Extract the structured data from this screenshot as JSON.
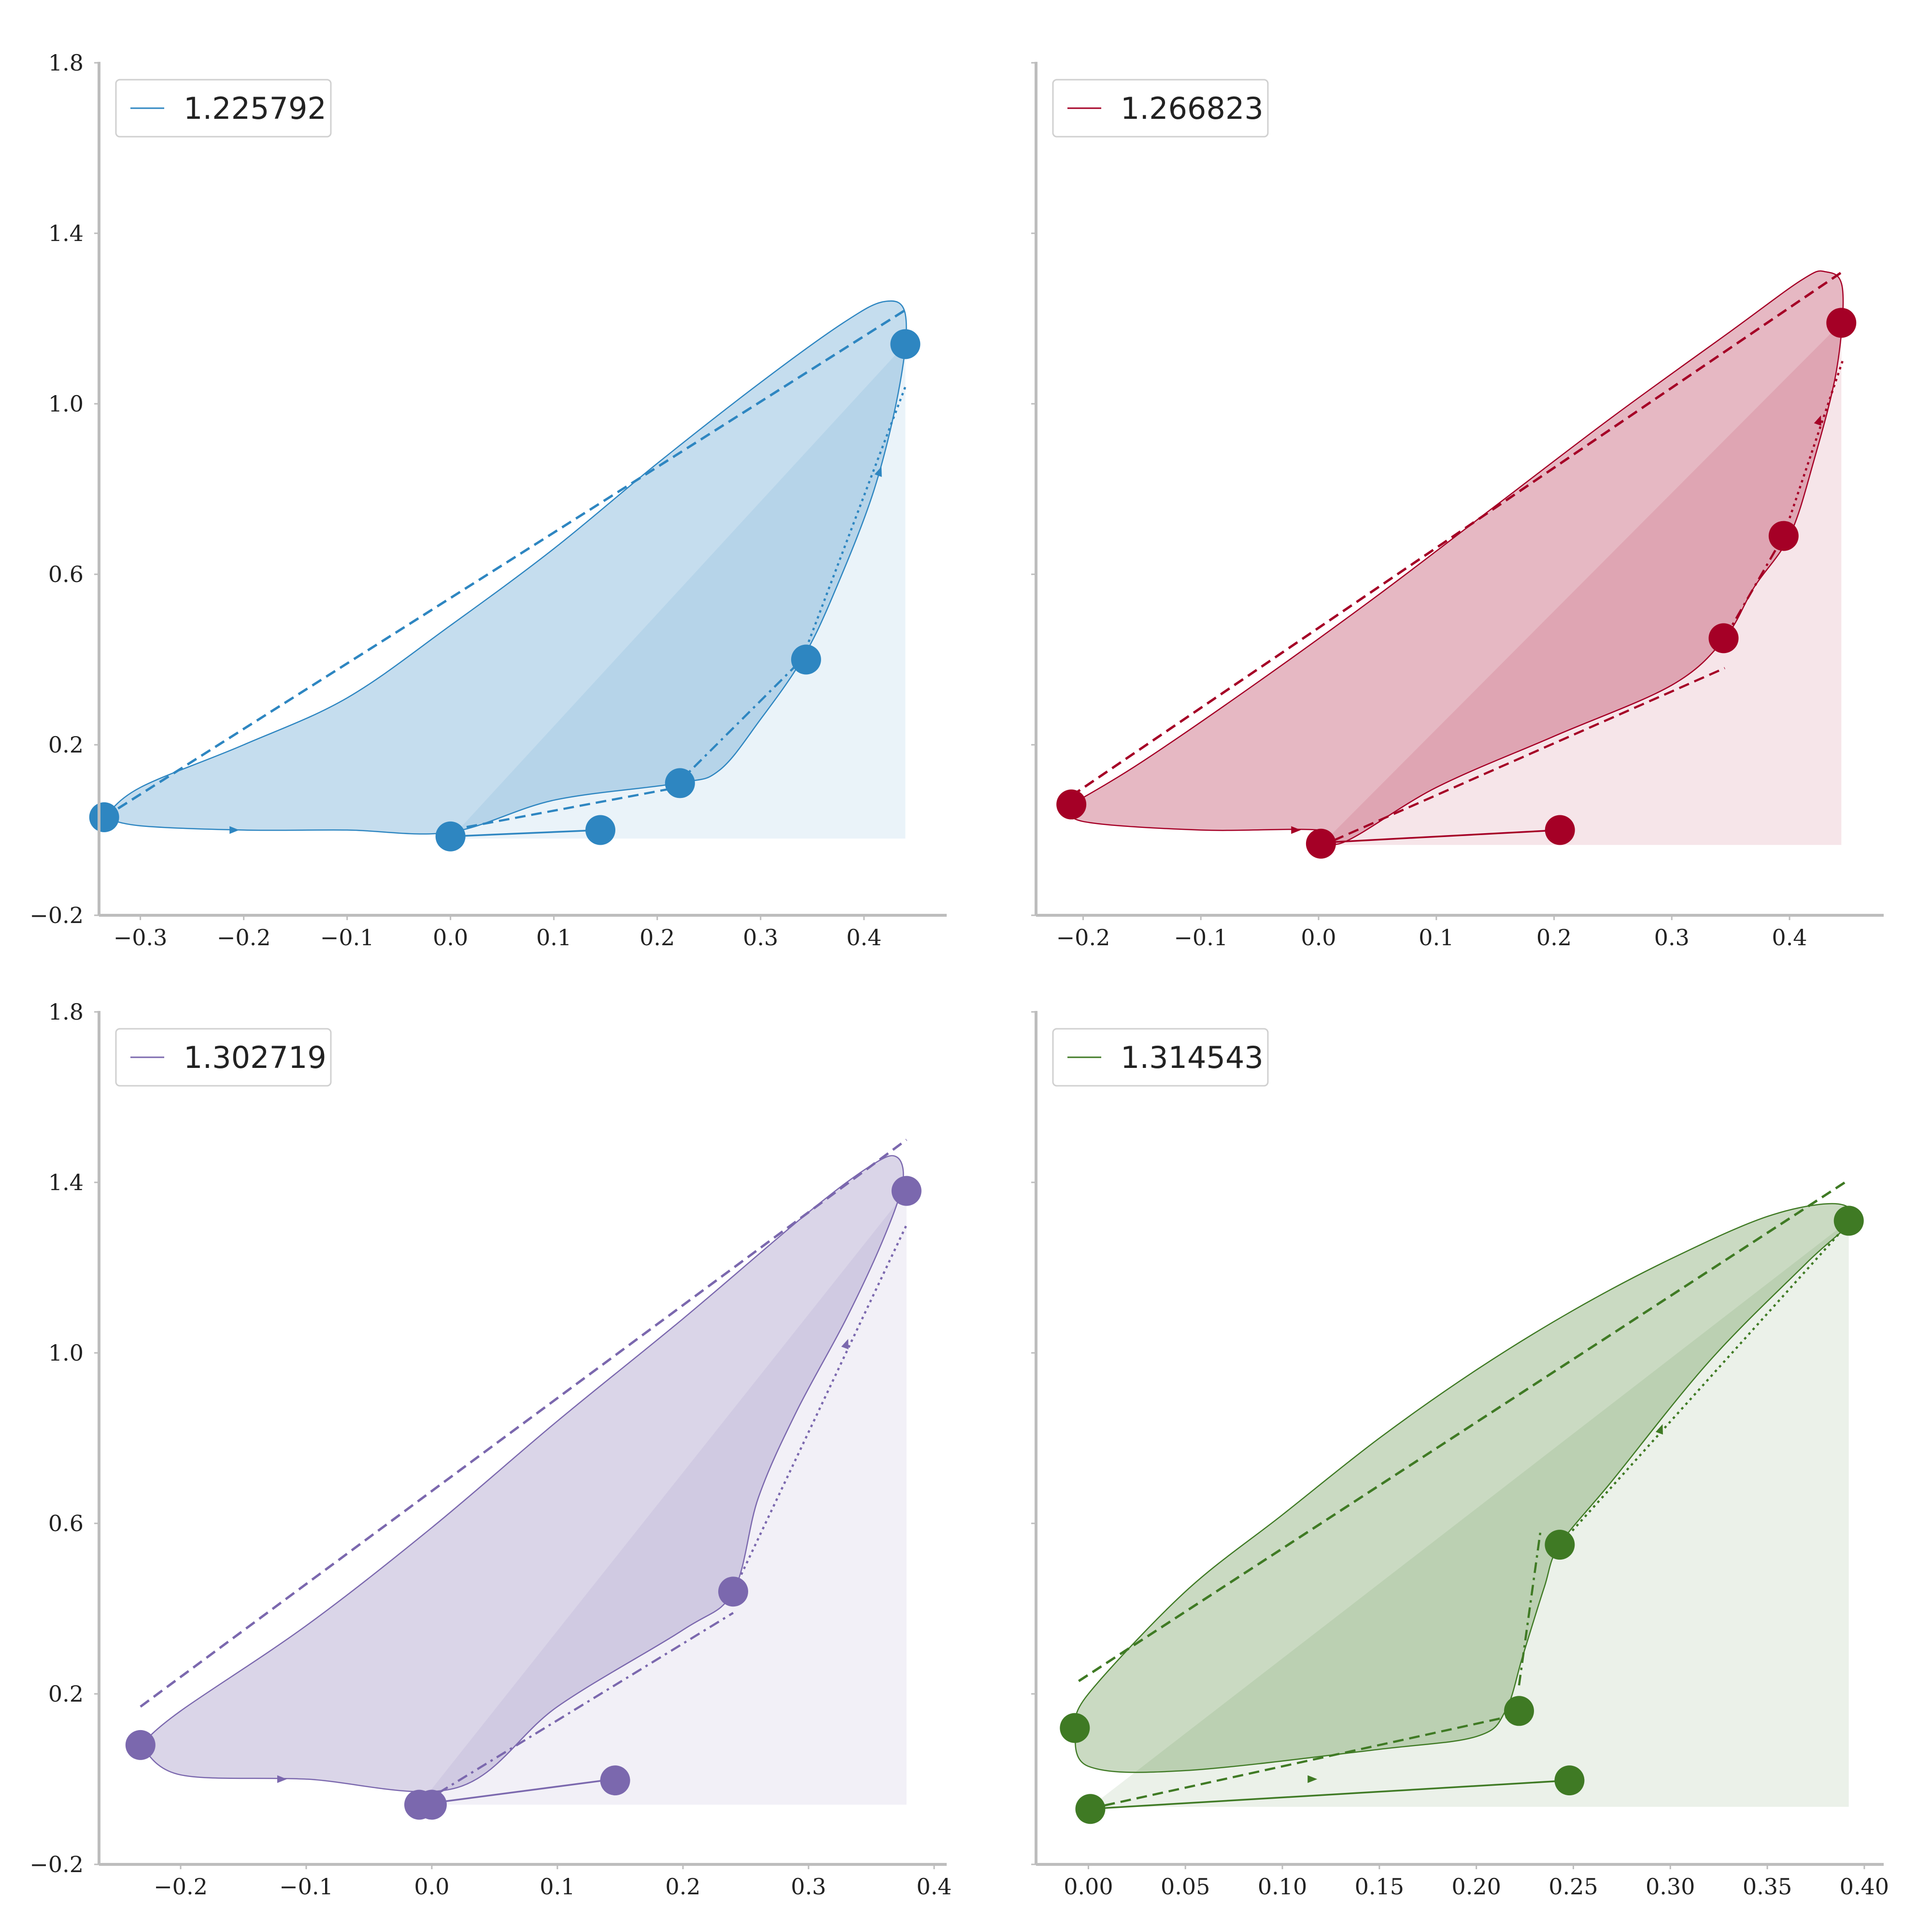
{
  "chart_data": [
    {
      "type": "line",
      "legend": "1.225792",
      "legend_placement": "top-left",
      "color": "#2e86c1",
      "grid": false,
      "xlim": [
        -0.34,
        0.48
      ],
      "ylim": [
        -0.2,
        1.8
      ],
      "xticks": [
        -0.3,
        -0.2,
        -0.1,
        0.0,
        0.1,
        0.2,
        0.3,
        0.4
      ],
      "xtick_labels": [
        "−0.3",
        "−0.2",
        "−0.1",
        "0.0",
        "0.1",
        "0.2",
        "0.3",
        "0.4"
      ],
      "yticks": [
        -0.2,
        0.2,
        0.6,
        1.0,
        1.4,
        1.8
      ],
      "ytick_labels": [
        "−0.2",
        "0.2",
        "0.6",
        "1.0",
        "1.4",
        "1.8"
      ],
      "fill_baseline": -0.02,
      "outer_curve": [
        [
          -0.335,
          0.03
        ],
        [
          -0.3,
          0.1
        ],
        [
          -0.2,
          0.2
        ],
        [
          -0.1,
          0.31
        ],
        [
          0.0,
          0.48
        ],
        [
          0.1,
          0.66
        ],
        [
          0.2,
          0.86
        ],
        [
          0.3,
          1.05
        ],
        [
          0.38,
          1.19
        ],
        [
          0.42,
          1.24
        ],
        [
          0.44,
          1.21
        ],
        [
          0.435,
          1.05
        ],
        [
          0.41,
          0.8
        ],
        [
          0.37,
          0.55
        ],
        [
          0.34,
          0.4
        ],
        [
          0.3,
          0.26
        ],
        [
          0.26,
          0.14
        ],
        [
          0.22,
          0.11
        ],
        [
          0.1,
          0.07
        ],
        [
          0.0,
          -0.005
        ],
        [
          -0.1,
          -0.0
        ],
        [
          -0.2,
          0.0
        ],
        [
          -0.3,
          0.01
        ],
        [
          -0.335,
          0.03
        ]
      ],
      "dashed_line": [
        [
          -0.335,
          0.03
        ],
        [
          0.44,
          1.22
        ]
      ],
      "segment_lines": [
        {
          "style": "dashdot",
          "points": [
            [
              0.22,
              0.11
            ],
            [
              0.34,
              0.4
            ]
          ]
        },
        {
          "style": "dotted",
          "points": [
            [
              0.34,
              0.4
            ],
            [
              0.44,
              1.04
            ]
          ]
        },
        {
          "style": "dashed",
          "points": [
            [
              0.0,
              0.0
            ],
            [
              0.22,
              0.1
            ]
          ]
        },
        {
          "style": "solid",
          "points": [
            [
              0.0,
              -0.015
            ],
            [
              0.145,
              0.0
            ]
          ]
        }
      ],
      "points": [
        [
          -0.335,
          0.03
        ],
        [
          0.0,
          -0.015
        ],
        [
          0.145,
          0.0
        ],
        [
          0.222,
          0.11
        ],
        [
          0.344,
          0.4
        ],
        [
          0.44,
          1.14
        ]
      ],
      "arrows": [
        [
          -0.21,
          0.0
        ],
        [
          0.415,
          0.84
        ]
      ]
    },
    {
      "type": "line",
      "legend": "1.266823",
      "legend_placement": "top-left",
      "color": "#a50026",
      "grid": false,
      "xlim": [
        -0.24,
        0.48
      ],
      "ylim": [
        -0.2,
        1.8
      ],
      "xticks": [
        -0.2,
        -0.1,
        0.0,
        0.1,
        0.2,
        0.3,
        0.4
      ],
      "xtick_labels": [
        "−0.2",
        "−0.1",
        "0.0",
        "0.1",
        "0.2",
        "0.3",
        "0.4"
      ],
      "yticks": [
        -0.2,
        0.2,
        0.6,
        1.0,
        1.4,
        1.8
      ],
      "ytick_labels": [
        "",
        "",
        "",
        "",
        "",
        ""
      ],
      "fill_baseline": -0.035,
      "outer_curve": [
        [
          -0.21,
          0.06
        ],
        [
          -0.15,
          0.16
        ],
        [
          -0.05,
          0.35
        ],
        [
          0.05,
          0.55
        ],
        [
          0.15,
          0.76
        ],
        [
          0.25,
          0.97
        ],
        [
          0.35,
          1.17
        ],
        [
          0.41,
          1.29
        ],
        [
          0.43,
          1.31
        ],
        [
          0.445,
          1.27
        ],
        [
          0.44,
          1.08
        ],
        [
          0.42,
          0.86
        ],
        [
          0.4,
          0.69
        ],
        [
          0.37,
          0.57
        ],
        [
          0.345,
          0.45
        ],
        [
          0.3,
          0.34
        ],
        [
          0.2,
          0.22
        ],
        [
          0.1,
          0.1
        ],
        [
          0.02,
          -0.03
        ],
        [
          0.0,
          -0.0
        ],
        [
          -0.1,
          0.0
        ],
        [
          -0.2,
          0.02
        ],
        [
          -0.21,
          0.06
        ]
      ],
      "dashed_line": [
        [
          -0.21,
          0.08
        ],
        [
          0.445,
          1.31
        ]
      ],
      "segment_lines": [
        {
          "style": "dashed",
          "points": [
            [
              0.0,
              -0.04
            ],
            [
              0.345,
              0.38
            ]
          ]
        },
        {
          "style": "dashdot",
          "points": [
            [
              0.345,
              0.45
            ],
            [
              0.395,
              0.69
            ]
          ]
        },
        {
          "style": "dotted",
          "points": [
            [
              0.395,
              0.69
            ],
            [
              0.445,
              1.1
            ]
          ]
        },
        {
          "style": "solid",
          "points": [
            [
              0.0,
              -0.03
            ],
            [
              0.205,
              0.0
            ]
          ]
        }
      ],
      "points": [
        [
          -0.21,
          0.06
        ],
        [
          0.002,
          -0.032
        ],
        [
          0.205,
          0.0
        ],
        [
          0.344,
          0.45
        ],
        [
          0.395,
          0.69
        ],
        [
          0.444,
          1.19
        ]
      ],
      "arrows": [
        [
          -0.02,
          0.0
        ],
        [
          0.425,
          0.96
        ]
      ]
    },
    {
      "type": "line",
      "legend": "1.302719",
      "legend_placement": "top-left",
      "color": "#7b68ae",
      "grid": false,
      "xlim": [
        -0.265,
        0.41
      ],
      "ylim": [
        -0.2,
        1.8
      ],
      "xticks": [
        -0.2,
        -0.1,
        0.0,
        0.1,
        0.2,
        0.3,
        0.4
      ],
      "xtick_labels": [
        "−0.2",
        "−0.1",
        "0.0",
        "0.1",
        "0.2",
        "0.3",
        "0.4"
      ],
      "yticks": [
        -0.2,
        0.2,
        0.6,
        1.0,
        1.4,
        1.8
      ],
      "ytick_labels": [
        "−0.2",
        "0.2",
        "0.6",
        "1.0",
        "1.4",
        "1.8"
      ],
      "fill_baseline": -0.06,
      "outer_curve": [
        [
          -0.232,
          0.08
        ],
        [
          -0.2,
          0.16
        ],
        [
          -0.1,
          0.36
        ],
        [
          0.0,
          0.59
        ],
        [
          0.1,
          0.84
        ],
        [
          0.2,
          1.08
        ],
        [
          0.3,
          1.33
        ],
        [
          0.35,
          1.44
        ],
        [
          0.37,
          1.46
        ],
        [
          0.375,
          1.4
        ],
        [
          0.36,
          1.27
        ],
        [
          0.33,
          1.08
        ],
        [
          0.29,
          0.86
        ],
        [
          0.26,
          0.66
        ],
        [
          0.24,
          0.44
        ],
        [
          0.2,
          0.35
        ],
        [
          0.1,
          0.17
        ],
        [
          0.02,
          -0.02
        ],
        [
          -0.1,
          -0.0
        ],
        [
          -0.2,
          0.01
        ],
        [
          -0.232,
          0.08
        ]
      ],
      "dashed_line": [
        [
          -0.232,
          0.17
        ],
        [
          0.378,
          1.5
        ]
      ],
      "segment_lines": [
        {
          "style": "dashdot",
          "points": [
            [
              -0.01,
              -0.06
            ],
            [
              0.24,
              0.39
            ]
          ]
        },
        {
          "style": "dotted",
          "points": [
            [
              0.24,
              0.44
            ],
            [
              0.378,
              1.3
            ]
          ]
        },
        {
          "style": "solid",
          "points": [
            [
              -0.01,
              -0.06
            ],
            [
              0.145,
              -0.0
            ]
          ]
        }
      ],
      "points": [
        [
          -0.232,
          0.08
        ],
        [
          -0.01,
          -0.06
        ],
        [
          0.0,
          -0.06
        ],
        [
          0.146,
          -0.003
        ],
        [
          0.24,
          0.44
        ],
        [
          0.378,
          1.38
        ]
      ],
      "arrows": [
        [
          -0.12,
          0.0
        ],
        [
          0.33,
          1.02
        ]
      ]
    },
    {
      "type": "line",
      "legend": "1.314543",
      "legend_placement": "top-left",
      "color": "#3f7a24",
      "grid": false,
      "xlim": [
        -0.027,
        0.41
      ],
      "ylim": [
        -0.2,
        1.8
      ],
      "xticks": [
        0.0,
        0.05,
        0.1,
        0.15,
        0.2,
        0.25,
        0.3,
        0.35,
        0.4
      ],
      "xtick_labels": [
        "0.00",
        "0.05",
        "0.10",
        "0.15",
        "0.20",
        "0.25",
        "0.30",
        "0.35",
        "0.40"
      ],
      "yticks": [
        -0.2,
        0.2,
        0.6,
        1.0,
        1.4,
        1.8
      ],
      "ytick_labels": [
        "",
        "",
        "",
        "",
        "",
        ""
      ],
      "fill_baseline": -0.065,
      "outer_curve": [
        [
          -0.007,
          0.12
        ],
        [
          0.0,
          0.2
        ],
        [
          0.05,
          0.44
        ],
        [
          0.1,
          0.62
        ],
        [
          0.15,
          0.8
        ],
        [
          0.2,
          0.96
        ],
        [
          0.25,
          1.1
        ],
        [
          0.3,
          1.22
        ],
        [
          0.35,
          1.32
        ],
        [
          0.385,
          1.35
        ],
        [
          0.393,
          1.31
        ],
        [
          0.37,
          1.21
        ],
        [
          0.32,
          0.98
        ],
        [
          0.27,
          0.7
        ],
        [
          0.243,
          0.55
        ],
        [
          0.235,
          0.45
        ],
        [
          0.224,
          0.29
        ],
        [
          0.215,
          0.16
        ],
        [
          0.2,
          0.1
        ],
        [
          0.15,
          0.07
        ],
        [
          0.05,
          0.02
        ],
        [
          0.0,
          0.03
        ],
        [
          -0.007,
          0.12
        ]
      ],
      "dashed_line": [
        [
          -0.005,
          0.23
        ],
        [
          0.39,
          1.4
        ]
      ],
      "segment_lines": [
        {
          "style": "dashdot",
          "points": [
            [
              0.222,
              0.22
            ],
            [
              0.233,
              0.58
            ]
          ]
        },
        {
          "style": "dashed",
          "points": [
            [
              0.0,
              -0.07
            ],
            [
              0.22,
              0.15
            ]
          ]
        },
        {
          "style": "dotted",
          "points": [
            [
              0.243,
              0.55
            ],
            [
              0.393,
              1.31
            ]
          ]
        },
        {
          "style": "solid",
          "points": [
            [
              0.0,
              -0.07
            ],
            [
              0.248,
              -0.003
            ]
          ]
        }
      ],
      "points": [
        [
          -0.007,
          0.12
        ],
        [
          0.001,
          -0.07
        ],
        [
          0.248,
          -0.003
        ],
        [
          0.222,
          0.16
        ],
        [
          0.243,
          0.55
        ],
        [
          0.392,
          1.31
        ]
      ],
      "arrows": [
        [
          0.115,
          0.0
        ],
        [
          0.295,
          0.82
        ]
      ]
    }
  ]
}
